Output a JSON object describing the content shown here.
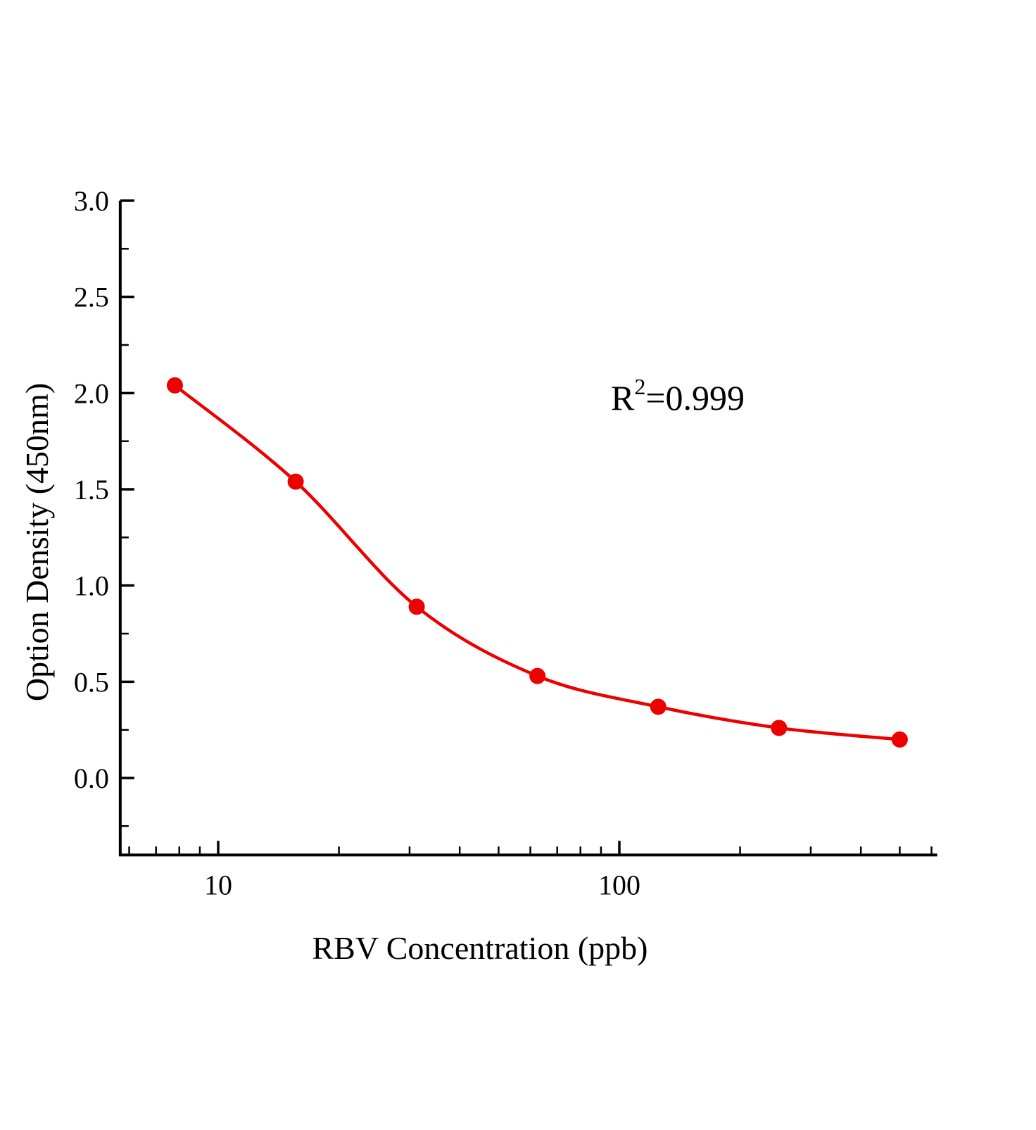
{
  "figure": {
    "background": "#ffffff"
  },
  "chart_data": {
    "type": "scatter",
    "title": "",
    "xlabel": "RBV Concentration (ppb)",
    "ylabel": "Option Density (450nm)",
    "x_scale": "log",
    "y_scale": "linear",
    "x": [
      7.8,
      15.6,
      31.25,
      62.5,
      125,
      250,
      500
    ],
    "y": [
      2.04,
      1.54,
      0.89,
      0.53,
      0.37,
      0.26,
      0.2
    ],
    "curve": "smooth sigmoidal standard-curve fit through data points",
    "annotation": {
      "text": "R²=0.999",
      "base": "R",
      "superscript": "2",
      "rest": "=0.999"
    },
    "marker_color": "#ec0000",
    "line_color": "#ec0000",
    "axis_color": "#000000",
    "xlim": [
      5.7,
      620
    ],
    "ylim": [
      -0.4,
      3.0
    ],
    "x_major_ticks": [
      10,
      100
    ],
    "y_major_ticks": [
      0,
      0.5,
      1,
      1.5,
      2,
      2.5,
      3
    ],
    "y_minor_step": 0.25,
    "grid": false,
    "legend": false
  }
}
